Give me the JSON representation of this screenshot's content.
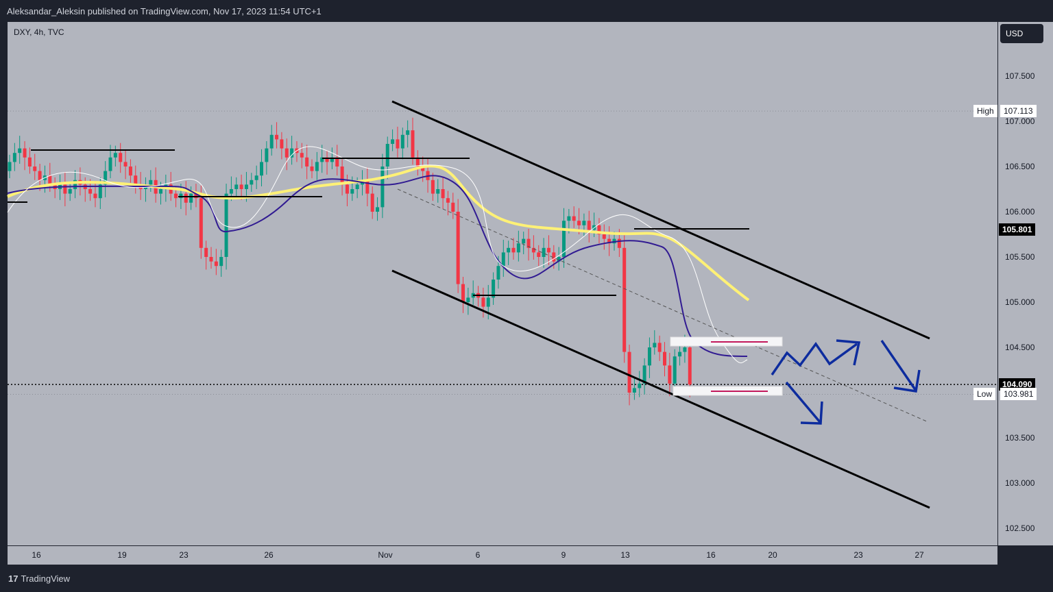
{
  "header": {
    "text": "Aleksandar_Aleksin published on TradingView.com, Nov 17, 2023 11:54 UTC+1"
  },
  "footer": {
    "logo_mark": "17",
    "logo_text": "TradingView"
  },
  "symbol": "DXY, 4h, TVC",
  "currency_button": "USD",
  "markers": {
    "high_label": "High",
    "high_value": "107.113",
    "low_label": "Low",
    "low_value": "103.981",
    "current_value": "104.090",
    "level_value": "105.801"
  },
  "colors": {
    "bull": "#089981",
    "bear": "#f23645",
    "ema_slow": "#fff176",
    "ema_fast": "#311b92",
    "arrow": "#0d2c9e"
  },
  "chart_data": {
    "type": "candlestick",
    "title": "DXY, 4h, TVC",
    "ylim": [
      102.2,
      108.2
    ],
    "x_ticks": [
      "16",
      "19",
      "23",
      "26",
      "Nov",
      "6",
      "9",
      "13",
      "16",
      "20",
      "23",
      "27"
    ],
    "y_ticks": [
      "107.500",
      "107.000",
      "106.500",
      "106.000",
      "105.500",
      "105.000",
      "104.500",
      "104.000",
      "103.500",
      "103.000",
      "102.500"
    ],
    "grid": false,
    "last_price": 104.09,
    "high": 107.113,
    "low": 103.981,
    "annotations": [
      {
        "type": "channel",
        "description": "descending channel"
      },
      {
        "type": "horizontal_level",
        "value": 105.801
      },
      {
        "type": "range_box",
        "top": 104.55,
        "bottom": 103.99
      },
      {
        "type": "arrow",
        "description": "bullish zig-zag scenario"
      },
      {
        "type": "arrow",
        "description": "bearish scenarios"
      }
    ],
    "series": [
      {
        "name": "price",
        "values_description": "4h candles"
      },
      {
        "name": "EMA (yellow)"
      },
      {
        "name": "MA (dark blue)"
      },
      {
        "name": "MA (white)"
      }
    ]
  }
}
